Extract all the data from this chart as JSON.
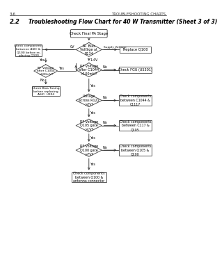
{
  "page_header_left": "3-6",
  "page_header_right": "TROUBLESHOOTING CHARTS",
  "section": "2.2",
  "title": "Troubleshooting Flow Chart for 40 W Transmitter (Sheet 3 of 3)",
  "bg_color": "#ffffff",
  "start_label": "Check Final PA Stage",
  "d1_label": "PA_Bias\nVoltage at\nR134",
  "d2_label": "RF Voltage\nafter C1044\n>100mV?",
  "d3_label": "Voltage\nacross R122\n>2V?",
  "d4_label": "RF Voltage\nQ105 gate\n>1V?",
  "d5_label": "RF Voltage\nQ100 gate\n>7V?",
  "r_replace": "Replace Q100",
  "r_fgu": "Check FGU (U5301)",
  "r_c1044_c1117": "Check components\nbetween C1044 &\nC1117",
  "r_c117_q105": "Check components\nbetween C117 &\nQ105",
  "r_q105_q100": "Check components\nbetween Q105 &\nQ100",
  "r_antenna": "Check components\nbetween Q100 &\nantenna connector",
  "r_left_check": "Check components\nbetween ASIC &\nQ100 before re-\nplacing Q100",
  "d_rf_left_label": "RF Voltage\nafter C1044\n>100mV?",
  "r_bias_tuning": "Check Bias Tuning\nbefore replacing\nASIC, U304",
  "lbl_supply": "Supply Voltage",
  "lbl_0v": "0V",
  "lbl_14v": "1-4V",
  "lbl_yes": "Yes",
  "lbl_no": "No"
}
